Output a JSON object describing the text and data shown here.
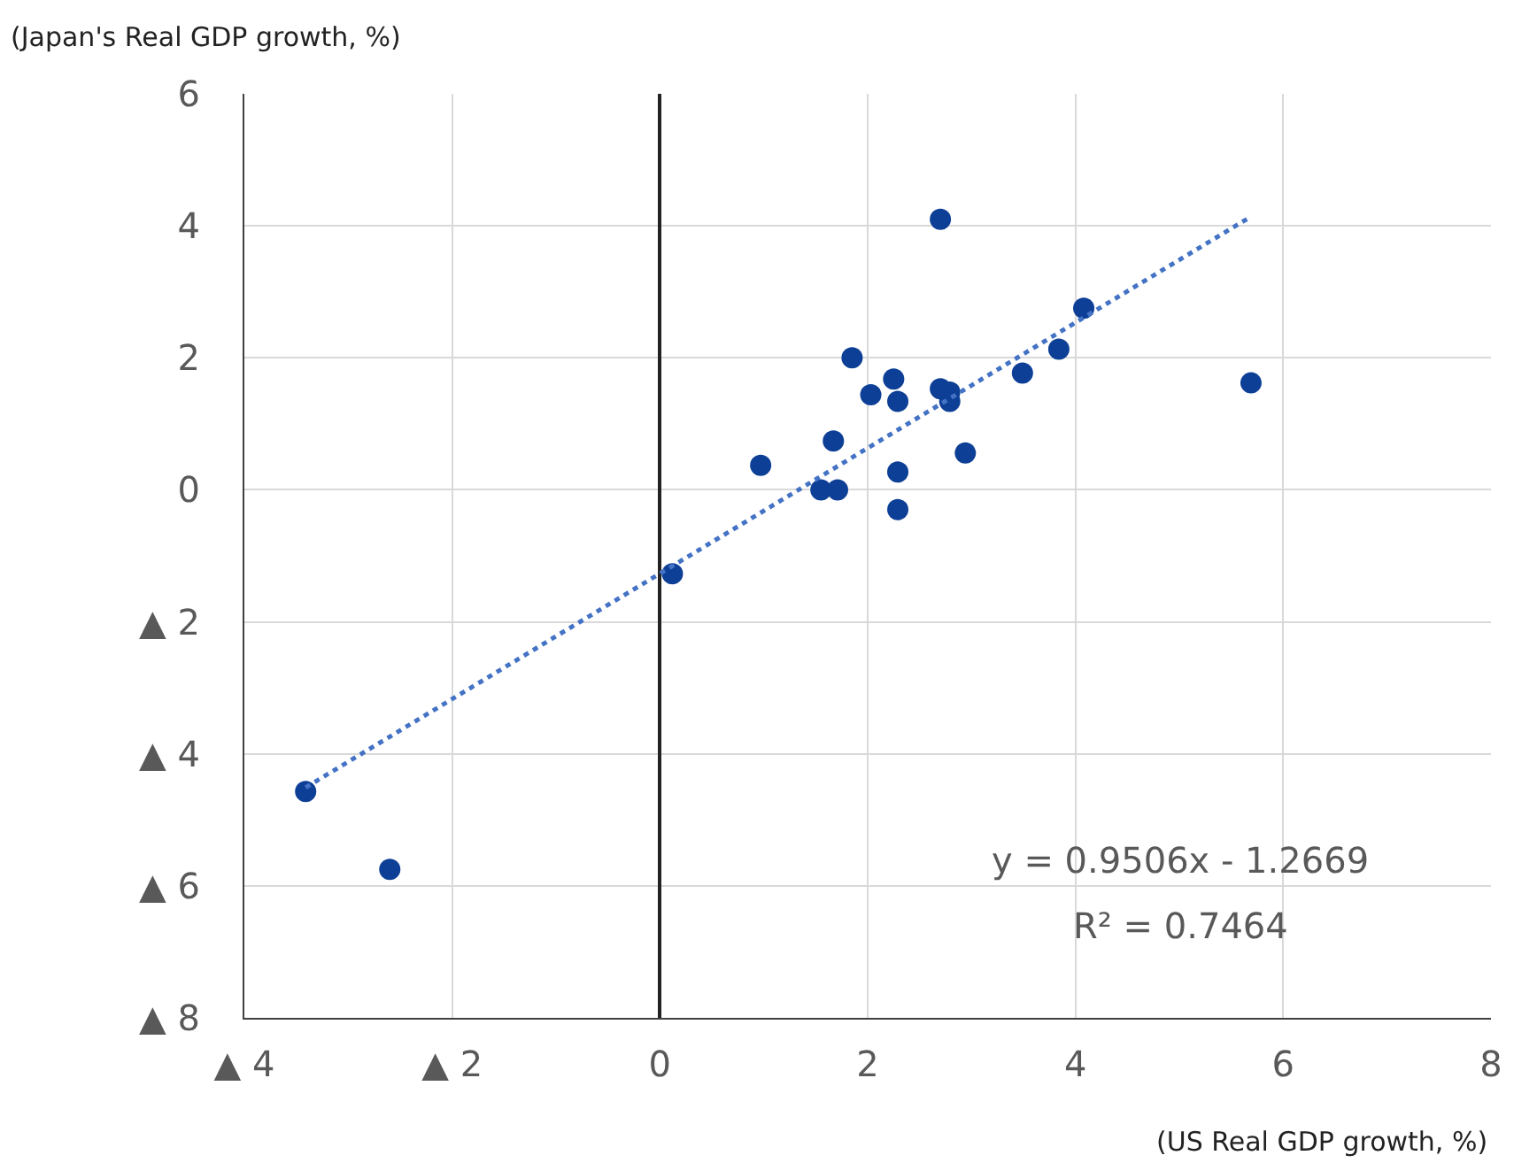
{
  "chart_data": {
    "type": "scatter",
    "xlabel": "(US Real GDP growth, %)",
    "ylabel": "(Japan's Real GDP growth, %)",
    "xlim": [
      -4,
      8
    ],
    "ylim": [
      -8,
      6
    ],
    "xticks": [
      {
        "value": -4,
        "label": "▲ 4"
      },
      {
        "value": -2,
        "label": "▲ 2"
      },
      0,
      2,
      4,
      6,
      8
    ],
    "yticks": [
      {
        "value": -8,
        "label": "▲ 8"
      },
      {
        "value": -6,
        "label": "▲ 6"
      },
      {
        "value": -4,
        "label": "▲ 4"
      },
      {
        "value": -2,
        "label": "▲ 2"
      },
      0,
      2,
      4,
      6
    ],
    "grid": true,
    "marker": "circle",
    "series": [
      {
        "color": "#0d3f96",
        "x": [
          2.7,
          4.08,
          3.84,
          3.49,
          5.69,
          1.85,
          2.25,
          2.03,
          2.29,
          2.7,
          2.79,
          2.79,
          1.67,
          0.97,
          2.94,
          2.29,
          1.55,
          1.71,
          2.29,
          0.12,
          -3.41,
          -2.6
        ],
        "values": [
          4.1,
          2.75,
          2.13,
          1.77,
          1.62,
          2.0,
          1.68,
          1.44,
          1.34,
          1.53,
          1.48,
          1.34,
          0.74,
          0.37,
          0.56,
          0.27,
          0.0,
          0.0,
          -0.3,
          -1.27,
          -4.57,
          -5.75
        ]
      },
      {
        "type": "line",
        "color": "#4472c4",
        "line_style": "dotted",
        "marker": "none",
        "x": [
          -3.41,
          5.69
        ],
        "values": [
          -4.51,
          4.14
        ]
      }
    ],
    "annotations": [
      "y = 0.9506x - 1.2669",
      "R² = 0.7464"
    ]
  }
}
